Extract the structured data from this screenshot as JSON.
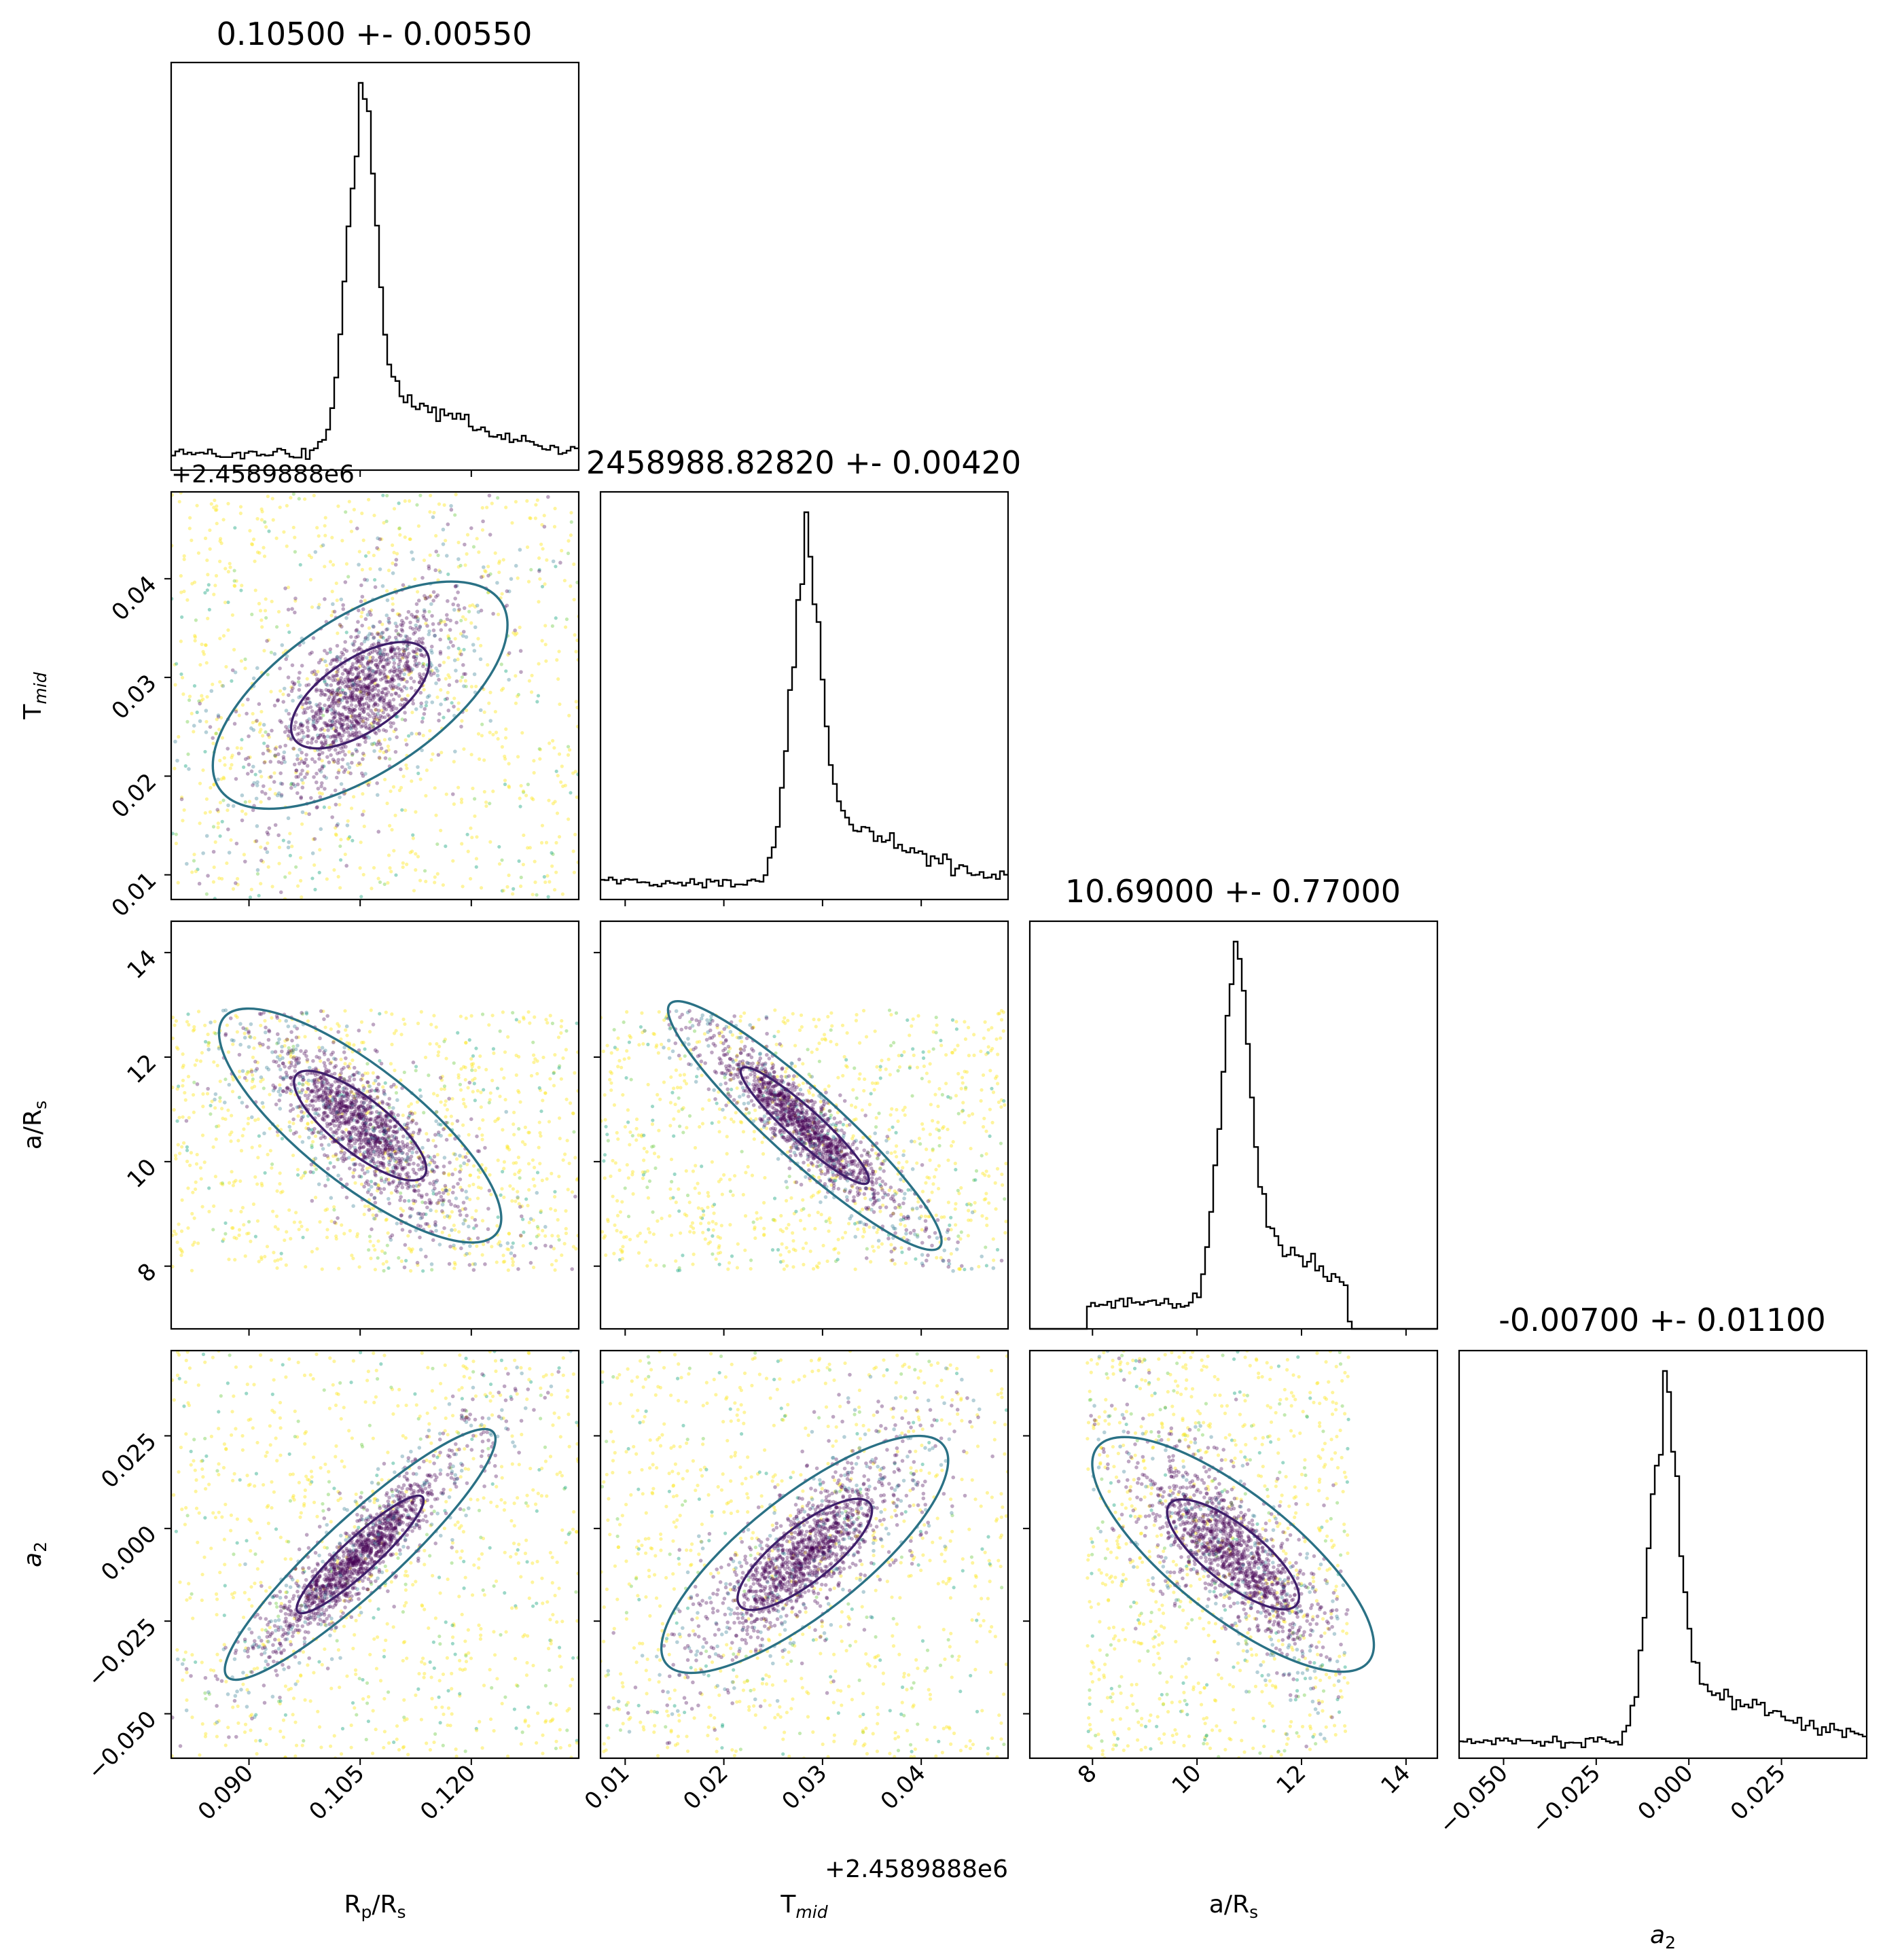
{
  "chart_data": {
    "type": "scatter",
    "subtype": "corner",
    "colors": {
      "hist_line": "#000000",
      "inner_contour": "#3f1f6b",
      "middle_contour": "#2a7185",
      "outer_contour": "#fde725",
      "points_core": "#440154",
      "points_mid": "#2a788e",
      "points_teal": "#22a884",
      "points_green": "#7ad151",
      "points_yellow": "#fde725"
    },
    "parameters": [
      {
        "id": "rprs",
        "label_main": "R",
        "label_sub": "p",
        "label_tail": "/R",
        "label_tail_sub": "s",
        "range": [
          0.0795,
          0.1345
        ],
        "center": 0.105,
        "sigma": 0.0055,
        "ticks": [
          "0.090",
          "0.105",
          "0.120"
        ],
        "tick_values": [
          0.09,
          0.105,
          0.12
        ],
        "offset_text": ""
      },
      {
        "id": "tmid",
        "label_main": "T",
        "label_sub": "mid",
        "label_tail": "",
        "label_tail_sub": "",
        "range": [
          0.0075,
          0.0488
        ],
        "center": 0.0282,
        "sigma": 0.0042,
        "ticks": [
          "0.01",
          "0.02",
          "0.03",
          "0.04"
        ],
        "tick_values": [
          0.01,
          0.02,
          0.03,
          0.04
        ],
        "offset_text": "+2.4589888e6"
      },
      {
        "id": "ars",
        "label_main": "a/R",
        "label_sub": "s",
        "label_tail": "",
        "label_tail_sub": "",
        "range": [
          6.8,
          14.6
        ],
        "center": 10.69,
        "sigma": 0.77,
        "ticks": [
          "8",
          "10",
          "12",
          "14"
        ],
        "tick_values": [
          8,
          10,
          12,
          14
        ],
        "offset_text": ""
      },
      {
        "id": "a2",
        "label_main": "a",
        "label_sub": "2",
        "label_tail": "",
        "label_tail_sub": "",
        "italic": true,
        "range": [
          -0.062,
          0.048
        ],
        "center": -0.007,
        "sigma": 0.011,
        "ticks": [
          "−0.050",
          "−0.025",
          "0.000",
          "0.025"
        ],
        "tick_values": [
          -0.05,
          -0.025,
          0.0,
          0.025
        ],
        "offset_text": ""
      }
    ],
    "titles": [
      "0.10500 +- 0.00550",
      "2458988.82820 +- 0.00420",
      "10.69000 +- 0.77000",
      "-0.00700 +- 0.01100"
    ],
    "axis_labels": {
      "x": [
        "R_p/R_s",
        "T_mid",
        "a/R_s",
        "a_2"
      ],
      "y": [
        "T_mid",
        "a/R_s",
        "a_2"
      ]
    },
    "prior_bounds": {
      "ars": [
        7.9,
        12.9
      ]
    },
    "correlations": {
      "rprs_tmid": 0.65,
      "rprs_ars": -0.8,
      "tmid_ars": -0.93,
      "rprs_a2": 0.92,
      "tmid_a2": 0.8,
      "ars_a2": -0.78
    },
    "grid": false,
    "legend": "none"
  }
}
